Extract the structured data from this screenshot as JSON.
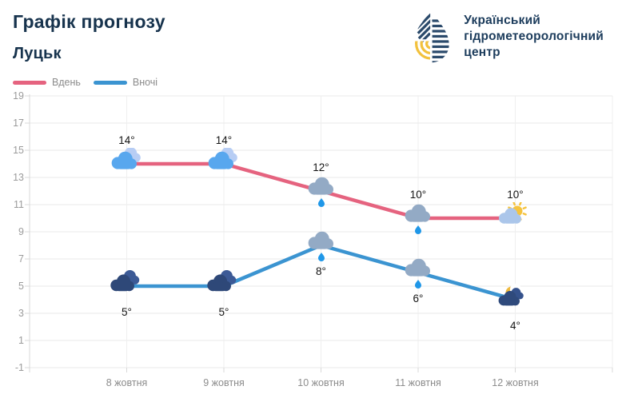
{
  "header": {
    "title": "Графік прогнозу",
    "subtitle": "Луцьк",
    "logo": {
      "line1": "Український",
      "line2": "гідрометеорологічний",
      "line3": "центр"
    }
  },
  "legend": [
    {
      "label": "Вдень",
      "color": "#e5637f"
    },
    {
      "label": "Вночі",
      "color": "#3b94d1"
    }
  ],
  "chart_data": {
    "type": "line",
    "title": "Графік прогнозу — Луцьк",
    "categories": [
      "8 жовтня",
      "9 жовтня",
      "10 жовтня",
      "11 жовтня",
      "12 жовтня"
    ],
    "series": [
      {
        "name": "Вдень",
        "color": "#e5637f",
        "values": [
          14,
          14,
          12,
          10,
          10
        ],
        "labels": [
          "14°",
          "14°",
          "12°",
          "10°",
          "10°"
        ],
        "icons": [
          "clouds-day",
          "clouds-day",
          "rain",
          "rain",
          "sun-cloud"
        ],
        "label_position": "above"
      },
      {
        "name": "Вночі",
        "color": "#3b94d1",
        "values": [
          5,
          5,
          8,
          6,
          4
        ],
        "labels": [
          "5°",
          "5°",
          "8°",
          "6°",
          "4°"
        ],
        "icons": [
          "clouds-night",
          "clouds-night",
          "rain",
          "rain",
          "moon-cloud"
        ],
        "label_position": "below"
      }
    ],
    "y_ticks": [
      19,
      17,
      15,
      13,
      11,
      9,
      7,
      5,
      3,
      1,
      -1
    ],
    "ylim": [
      -1,
      19
    ],
    "grid": true,
    "legend_position": "top-left"
  },
  "colors": {
    "navy_text": "#17334d",
    "day_line": "#e5637f",
    "night_line": "#3b94d1",
    "grid_line": "#e8e8e8",
    "axis_line": "#d8d8d8",
    "axis_text": "#9b9b9b",
    "rain_drop": "#1f97e8",
    "sun_yellow": "#f5c33d",
    "moon_yellow": "#eeb93e"
  }
}
